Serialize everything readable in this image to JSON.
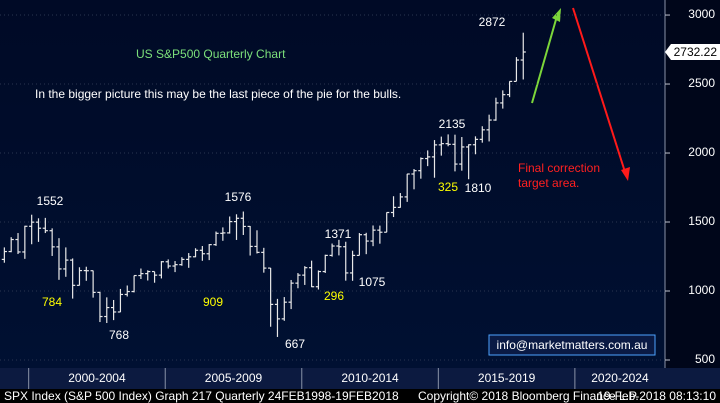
{
  "chart_data": {
    "type": "ohlc",
    "title": "US S&P500 Quarterly Chart",
    "subtitle": "In the bigger picture this may be the last piece of the pie for the bulls.",
    "x": [
      1999,
      1999.25,
      1999.5,
      1999.75,
      2000,
      2000.25,
      2000.5,
      2000.75,
      2001,
      2001.25,
      2001.5,
      2001.75,
      2002,
      2002.25,
      2002.5,
      2002.75,
      2003,
      2003.25,
      2003.5,
      2003.75,
      2004,
      2004.25,
      2004.5,
      2004.75,
      2005,
      2005.25,
      2005.5,
      2005.75,
      2006,
      2006.25,
      2006.5,
      2006.75,
      2007,
      2007.25,
      2007.5,
      2007.75,
      2008,
      2008.25,
      2008.5,
      2008.75,
      2009,
      2009.25,
      2009.5,
      2009.75,
      2010,
      2010.25,
      2010.5,
      2010.75,
      2011,
      2011.25,
      2011.5,
      2011.75,
      2012,
      2012.25,
      2012.5,
      2012.75,
      2013,
      2013.25,
      2013.5,
      2013.75,
      2014,
      2014.25,
      2014.5,
      2014.75,
      2015,
      2015.25,
      2015.5,
      2015.75,
      2016,
      2016.25,
      2016.5,
      2016.75,
      2017,
      2017.25,
      2017.5,
      2017.75,
      2018
    ],
    "open": [
      1229,
      1286,
      1373,
      1283,
      1469,
      1499,
      1455,
      1437,
      1320,
      1160,
      1224,
      1041,
      1148,
      1147,
      990,
      815,
      880,
      848,
      975,
      996,
      1112,
      1126,
      1141,
      1115,
      1212,
      1181,
      1191,
      1229,
      1248,
      1295,
      1270,
      1336,
      1418,
      1421,
      1503,
      1527,
      1468,
      1323,
      1280,
      1166,
      903,
      798,
      919,
      1057,
      1115,
      1169,
      1031,
      1141,
      1258,
      1326,
      1321,
      1131,
      1258,
      1408,
      1362,
      1441,
      1426,
      1569,
      1606,
      1682,
      1848,
      1872,
      1960,
      1972,
      2059,
      2068,
      2063,
      1920,
      2044,
      2060,
      2099,
      2168,
      2239,
      2363,
      2423,
      2519,
      2674
    ],
    "high": [
      1316,
      1390,
      1420,
      1473,
      1553,
      1527,
      1530,
      1454,
      1383,
      1316,
      1236,
      1172,
      1176,
      1148,
      994,
      954,
      935,
      1015,
      1040,
      1112,
      1163,
      1150,
      1140,
      1217,
      1229,
      1217,
      1245,
      1275,
      1310,
      1326,
      1340,
      1431,
      1461,
      1540,
      1556,
      1576,
      1471,
      1440,
      1313,
      1167,
      943,
      956,
      1080,
      1130,
      1180,
      1220,
      1149,
      1263,
      1344,
      1371,
      1357,
      1292,
      1420,
      1422,
      1475,
      1474,
      1570,
      1687,
      1710,
      1849,
      1884,
      1968,
      2019,
      2094,
      2119,
      2135,
      2133,
      2116,
      2063,
      2121,
      2194,
      2278,
      2401,
      2454,
      2520,
      2695,
      2872
    ],
    "low": [
      1205,
      1281,
      1268,
      1233,
      1339,
      1356,
      1420,
      1254,
      1081,
      1103,
      945,
      1040,
      1074,
      952,
      775,
      768,
      789,
      847,
      960,
      990,
      1087,
      1076,
      1060,
      1091,
      1163,
      1137,
      1183,
      1168,
      1245,
      1219,
      1224,
      1327,
      1364,
      1416,
      1370,
      1406,
      1257,
      1272,
      1133,
      741,
      667,
      784,
      869,
      1020,
      1044,
      1028,
      1011,
      1131,
      1249,
      1258,
      1075,
      1074,
      1258,
      1267,
      1325,
      1343,
      1426,
      1536,
      1604,
      1646,
      1737,
      1814,
      1905,
      1821,
      1981,
      2049,
      1867,
      1872,
      1810,
      1991,
      2075,
      2084,
      2234,
      2322,
      2405,
      2520,
      2533
    ],
    "close": [
      1286,
      1373,
      1283,
      1469,
      1499,
      1455,
      1437,
      1320,
      1160,
      1224,
      1041,
      1148,
      1147,
      990,
      815,
      880,
      848,
      975,
      996,
      1112,
      1126,
      1141,
      1115,
      1212,
      1181,
      1191,
      1229,
      1248,
      1295,
      1270,
      1336,
      1418,
      1421,
      1503,
      1527,
      1468,
      1323,
      1280,
      1166,
      903,
      798,
      919,
      1057,
      1115,
      1169,
      1031,
      1141,
      1258,
      1326,
      1321,
      1131,
      1258,
      1408,
      1362,
      1441,
      1426,
      1569,
      1606,
      1682,
      1848,
      1872,
      1960,
      1972,
      2059,
      2068,
      2063,
      1920,
      2044,
      2060,
      2099,
      2168,
      2239,
      2363,
      2423,
      2519,
      2674,
      2732.22
    ],
    "color": "#e8e8e8",
    "last_price": 2732.22,
    "xlim": [
      1998.95,
      2023.3
    ],
    "x_periods": [
      {
        "start": 2000,
        "end": 2005,
        "label": "2000-2004"
      },
      {
        "start": 2005,
        "end": 2010,
        "label": "2005-2009"
      },
      {
        "start": 2010,
        "end": 2015,
        "label": "2010-2014"
      },
      {
        "start": 2015,
        "end": 2020,
        "label": "2015-2019"
      },
      {
        "start": 2020,
        "end": 2025,
        "label": "2020-2024"
      }
    ],
    "ylim": [
      442,
      3109
    ],
    "yticks": [
      500,
      1000,
      1500,
      2000,
      2500,
      3000
    ],
    "grid": true,
    "annotations": [
      {
        "text": "2872",
        "color": "#ffffff"
      },
      {
        "text": "2135",
        "color": "#ffffff"
      },
      {
        "text": "325",
        "color": "#ffff00"
      },
      {
        "text": "1810",
        "color": "#ffffff"
      },
      {
        "text": "1552",
        "color": "#ffffff"
      },
      {
        "text": "1576",
        "color": "#ffffff"
      },
      {
        "text": "1371",
        "color": "#ffffff"
      },
      {
        "text": "784",
        "color": "#ffff00"
      },
      {
        "text": "909",
        "color": "#ffff00"
      },
      {
        "text": "296",
        "color": "#ffff00"
      },
      {
        "text": "1075",
        "color": "#ffffff"
      },
      {
        "text": "768",
        "color": "#ffffff"
      },
      {
        "text": "667",
        "color": "#ffffff"
      }
    ],
    "target_note": [
      "Final correction",
      "target area."
    ],
    "contact": "info@marketmatters.com.au",
    "footer": [
      "SPX Index (S&P 500 Index) Graph 217  Quarterly 24FEB1998-19FEB2018",
      "Copyright© 2018 Bloomberg Finance L.P.",
      "19-Feb-2018 08:13:10"
    ]
  }
}
